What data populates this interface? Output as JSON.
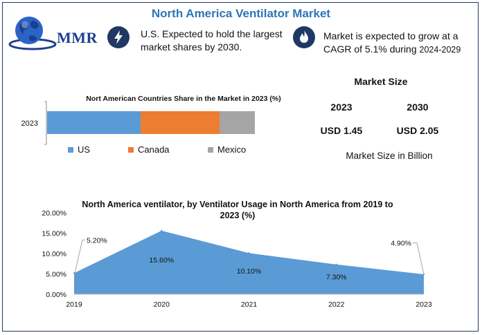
{
  "header": {
    "title": "North America Ventilator Market"
  },
  "logo": {
    "text": "MMR"
  },
  "info": [
    {
      "icon": "lightning-bolt-icon",
      "line1": "U.S. Expected to hold the largest",
      "line2": "market shares by 2030."
    },
    {
      "icon": "flame-icon",
      "line1": "Market is expected to grow at a",
      "line2": "CAGR of 5.1% during ",
      "line2_small": "2024-2029"
    }
  ],
  "market_size": {
    "title": "Market Size",
    "years": [
      "2023",
      "2030"
    ],
    "values": [
      "USD 1.45",
      "USD 2.05"
    ],
    "note": "Market Size in Billion"
  },
  "colors": {
    "accent": "#2e75b6",
    "frame": "#1f3864",
    "us": "#5b9bd5",
    "canada": "#ed7d31",
    "mexico": "#a5a5a5",
    "area": "#5b9bd5"
  },
  "chart_data": [
    {
      "type": "bar",
      "orientation": "horizontal",
      "stacked": true,
      "title": "Nort American Countries Share in the Market in 2023 (%)",
      "categories": [
        "2023"
      ],
      "series": [
        {
          "name": "US",
          "values": [
            45
          ]
        },
        {
          "name": "Canada",
          "values": [
            38
          ]
        },
        {
          "name": "Mexico",
          "values": [
            17
          ]
        }
      ],
      "xlim": [
        0,
        100
      ],
      "legend": "bottom"
    },
    {
      "type": "area",
      "title": "North America ventilator, by Ventilator Usage in North America from 2019 to 2023 (%)",
      "x": [
        "2019",
        "2020",
        "2021",
        "2022",
        "2023"
      ],
      "values": [
        5.2,
        15.6,
        10.1,
        7.3,
        4.9
      ],
      "data_labels": [
        "5.20%",
        "15.60%",
        "10.10%",
        "7.30%",
        "4.90%"
      ],
      "yticks": [
        "0.00%",
        "5.00%",
        "10.00%",
        "15.00%",
        "20.00%"
      ],
      "ylim": [
        0,
        20
      ],
      "grid": false
    }
  ]
}
